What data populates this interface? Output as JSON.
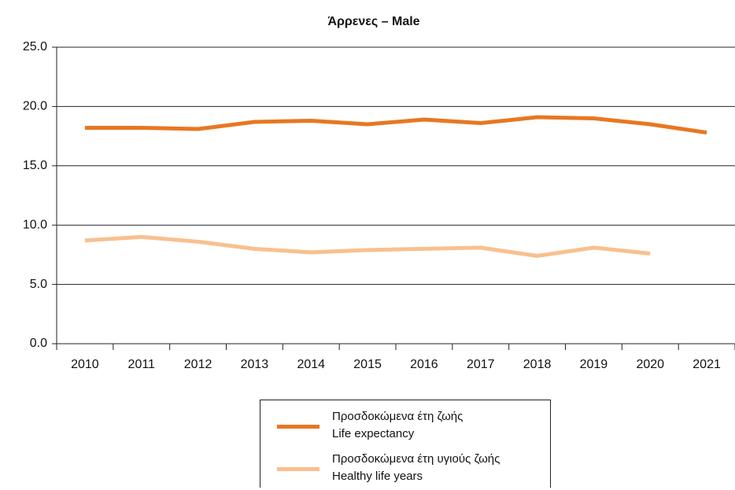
{
  "chart_data": {
    "type": "line",
    "title": "Άρρενες – Male",
    "categories": [
      "2010",
      "2011",
      "2012",
      "2013",
      "2014",
      "2015",
      "2016",
      "2017",
      "2018",
      "2019",
      "2020",
      "2021"
    ],
    "series": [
      {
        "name": "Προσδοκώμενα έτη ζωής\nLife expectancy",
        "color": "#e87722",
        "values": [
          18.2,
          18.2,
          18.1,
          18.7,
          18.8,
          18.5,
          18.9,
          18.6,
          19.1,
          19.0,
          18.5,
          17.8
        ]
      },
      {
        "name": "Προσδοκώμενα έτη υγιούς ζωής\nHealthy life years",
        "color": "#f9c08f",
        "values": [
          8.7,
          9.0,
          8.6,
          8.0,
          7.7,
          7.9,
          8.0,
          8.1,
          7.4,
          8.1,
          7.6,
          null
        ]
      }
    ],
    "ylim": [
      0,
      25
    ],
    "yticks": [
      {
        "value": 0,
        "label": "0.0"
      },
      {
        "value": 5,
        "label": "5.0"
      },
      {
        "value": 10,
        "label": "10.0"
      },
      {
        "value": 15,
        "label": "15.0"
      },
      {
        "value": 20,
        "label": "20.0"
      },
      {
        "value": 25,
        "label": "25.0"
      }
    ],
    "grid": true
  }
}
